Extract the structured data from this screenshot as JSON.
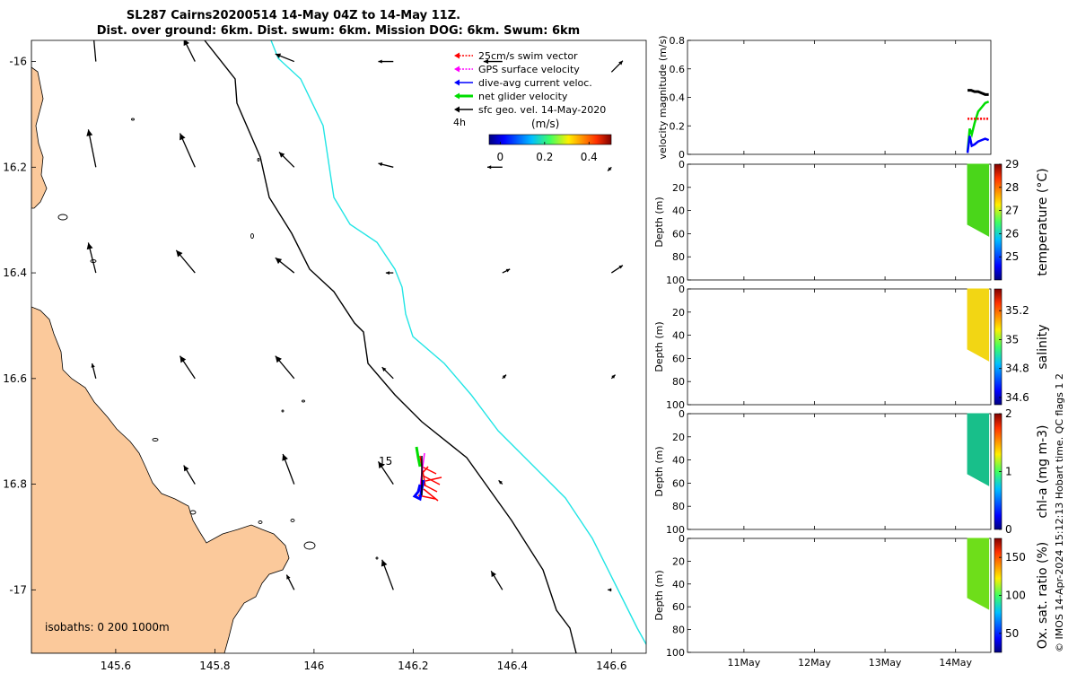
{
  "title": {
    "line1": "SL287 Cairns20200514 14-May 04Z to 14-May 11Z.",
    "line2": "Dist. over ground: 6km. Dist. swum: 6km. Mission DOG: 6km. Swum: 6km"
  },
  "map": {
    "x_ticks": [
      "145.6",
      "145.8",
      "146",
      "146.2",
      "146.4",
      "146.6"
    ],
    "y_ticks": [
      "-16",
      "16.2",
      "16.4",
      "16.6",
      "16.8",
      "-17"
    ],
    "xlim": [
      145.43,
      146.67
    ],
    "ylim": [
      -17.12,
      -15.96
    ],
    "land_color": "#fbc99b",
    "isobath_200_color": "#000000",
    "isobath_1000_color": "#22e5e5",
    "isobaths_label": "isobaths: 0   200  1000m",
    "time_label": "15",
    "legend": {
      "items": [
        {
          "label": "25cm/s swim vector",
          "color": "#ff0000"
        },
        {
          "label": "GPS surface velocity",
          "color": "#ff00ff"
        },
        {
          "label": "dive-avg current veloc.",
          "color": "#0000ff"
        },
        {
          "label": "net glider velocity",
          "color": "#00dd00"
        },
        {
          "label": "sfc geo. vel. 14-May-2020",
          "color": "#000000"
        }
      ],
      "scale_label": "4h"
    },
    "colorbar": {
      "label": "(m/s)",
      "ticks": [
        "0",
        "0.2",
        "0.4"
      ],
      "range": [
        -0.05,
        0.5
      ]
    },
    "geo_arrows": [
      {
        "lon": 145.56,
        "lat": -16.0,
        "u": -0.01,
        "v": 0.11
      },
      {
        "lon": 145.76,
        "lat": -16.0,
        "u": -0.03,
        "v": 0.06
      },
      {
        "lon": 145.96,
        "lat": -16.0,
        "u": -0.05,
        "v": 0.02
      },
      {
        "lon": 146.16,
        "lat": -16.0,
        "u": -0.04,
        "v": 0.0
      },
      {
        "lon": 146.38,
        "lat": -16.0,
        "u": -0.05,
        "v": 0.0
      },
      {
        "lon": 146.6,
        "lat": -16.02,
        "u": 0.03,
        "v": 0.03
      },
      {
        "lon": 145.56,
        "lat": -16.2,
        "u": -0.02,
        "v": 0.1
      },
      {
        "lon": 145.76,
        "lat": -16.2,
        "u": -0.04,
        "v": 0.09
      },
      {
        "lon": 145.96,
        "lat": -16.2,
        "u": -0.04,
        "v": 0.04
      },
      {
        "lon": 146.16,
        "lat": -16.2,
        "u": -0.04,
        "v": 0.01
      },
      {
        "lon": 146.38,
        "lat": -16.2,
        "u": -0.04,
        "v": 0.0
      },
      {
        "lon": 146.6,
        "lat": -16.2,
        "u": -0.01,
        "v": -0.01
      },
      {
        "lon": 145.56,
        "lat": -16.4,
        "u": -0.02,
        "v": 0.08
      },
      {
        "lon": 145.76,
        "lat": -16.4,
        "u": -0.05,
        "v": 0.06
      },
      {
        "lon": 145.96,
        "lat": -16.4,
        "u": -0.05,
        "v": 0.04
      },
      {
        "lon": 146.16,
        "lat": -16.4,
        "u": -0.02,
        "v": 0.0
      },
      {
        "lon": 146.38,
        "lat": -16.4,
        "u": 0.02,
        "v": 0.01
      },
      {
        "lon": 146.6,
        "lat": -16.4,
        "u": 0.03,
        "v": 0.02
      },
      {
        "lon": 145.56,
        "lat": -16.6,
        "u": -0.01,
        "v": 0.04
      },
      {
        "lon": 145.76,
        "lat": -16.6,
        "u": -0.04,
        "v": 0.06
      },
      {
        "lon": 145.96,
        "lat": -16.6,
        "u": -0.05,
        "v": 0.06
      },
      {
        "lon": 146.16,
        "lat": -16.6,
        "u": -0.03,
        "v": 0.03
      },
      {
        "lon": 146.38,
        "lat": -16.6,
        "u": 0.01,
        "v": 0.01
      },
      {
        "lon": 146.6,
        "lat": -16.6,
        "u": 0.01,
        "v": 0.01
      },
      {
        "lon": 145.76,
        "lat": -16.8,
        "u": -0.03,
        "v": 0.05
      },
      {
        "lon": 145.96,
        "lat": -16.8,
        "u": -0.03,
        "v": 0.08
      },
      {
        "lon": 146.16,
        "lat": -16.8,
        "u": -0.04,
        "v": 0.06
      },
      {
        "lon": 146.38,
        "lat": -16.8,
        "u": -0.01,
        "v": 0.01
      },
      {
        "lon": 146.6,
        "lat": -16.8,
        "u": 0.0,
        "v": 0.0
      },
      {
        "lon": 145.96,
        "lat": -17.0,
        "u": -0.02,
        "v": 0.04
      },
      {
        "lon": 146.16,
        "lat": -17.0,
        "u": -0.03,
        "v": 0.08
      },
      {
        "lon": 146.38,
        "lat": -17.0,
        "u": -0.03,
        "v": 0.05
      },
      {
        "lon": 146.6,
        "lat": -17.0,
        "u": -0.01,
        "v": 0.0
      }
    ]
  },
  "chart_data": [
    {
      "type": "line",
      "title": "",
      "ylabel": "velocity magnitude (m/s)",
      "ylim": [
        0,
        0.8
      ],
      "y_ticks": [
        "0",
        "0.2",
        "0.4",
        "0.6",
        "0.8"
      ],
      "x_ticks": [
        "11May",
        "12May",
        "13May",
        "14May"
      ],
      "series": [
        {
          "color": "#00dd00",
          "x": [
            14.17,
            14.2,
            14.23,
            14.27,
            14.32,
            14.37,
            14.42,
            14.47
          ],
          "values": [
            0.02,
            0.18,
            0.14,
            0.22,
            0.3,
            0.33,
            0.36,
            0.37
          ]
        },
        {
          "color": "#0000ff",
          "x": [
            14.17,
            14.2,
            14.23,
            14.27,
            14.32,
            14.37,
            14.42,
            14.47
          ],
          "values": [
            0.01,
            0.13,
            0.06,
            0.07,
            0.09,
            0.1,
            0.11,
            0.1
          ]
        },
        {
          "color": "#000000",
          "x": [
            14.17,
            14.22,
            14.27,
            14.32,
            14.37,
            14.42,
            14.47
          ],
          "values": [
            0.45,
            0.45,
            0.44,
            0.44,
            0.43,
            0.42,
            0.42
          ]
        },
        {
          "color": "#ff0000",
          "x": [
            14.17,
            14.22,
            14.27,
            14.32,
            14.37,
            14.42,
            14.47
          ],
          "values": [
            0.25,
            0.25,
            0.25,
            0.25,
            0.25,
            0.25,
            0.25
          ]
        }
      ]
    },
    {
      "type": "heatmap",
      "ylabel": "Depth (m)",
      "clabel": "temperature (°C)",
      "ylim": [
        100,
        0
      ],
      "y_ticks": [
        "0",
        "20",
        "40",
        "60",
        "80",
        "100"
      ],
      "clim": [
        24,
        29
      ],
      "c_ticks": [
        "25",
        "26",
        "27",
        "28",
        "29"
      ],
      "x_range": [
        14.17,
        14.47
      ],
      "depth_max_start": 52,
      "depth_max_end": 62,
      "value": 26.7,
      "color": "#4ad61a"
    },
    {
      "type": "heatmap",
      "ylabel": "Depth (m)",
      "clabel": "salinity",
      "ylim": [
        100,
        0
      ],
      "y_ticks": [
        "0",
        "20",
        "40",
        "60",
        "80",
        "100"
      ],
      "clim": [
        34.55,
        35.35
      ],
      "c_ticks": [
        "34.6",
        "34.8",
        "35",
        "35.2"
      ],
      "x_range": [
        14.17,
        14.47
      ],
      "depth_max_start": 52,
      "depth_max_end": 62,
      "value": 35.07,
      "color": "#f2d614"
    },
    {
      "type": "heatmap",
      "ylabel": "Depth (m)",
      "clabel": "chl-a (mg m-3)",
      "ylim": [
        100,
        0
      ],
      "y_ticks": [
        "0",
        "20",
        "40",
        "60",
        "80",
        "100"
      ],
      "clim": [
        0,
        2
      ],
      "c_ticks": [
        "0",
        "1",
        "2"
      ],
      "x_range": [
        14.17,
        14.47
      ],
      "depth_max_start": 52,
      "depth_max_end": 62,
      "value": 0.75,
      "color": "#18bf8a"
    },
    {
      "type": "heatmap",
      "ylabel": "Depth (m)",
      "clabel": "Ox. sat. ratio (%)",
      "ylim": [
        100,
        0
      ],
      "y_ticks": [
        "0",
        "20",
        "40",
        "60",
        "80",
        "100"
      ],
      "clim": [
        25,
        175
      ],
      "c_ticks": [
        "50",
        "100",
        "150"
      ],
      "x_range": [
        14.17,
        14.47
      ],
      "depth_max_start": 52,
      "depth_max_end": 62,
      "value": 112,
      "color": "#6ede1a"
    }
  ],
  "timeline_ticks": [
    11,
    12,
    13,
    14
  ],
  "timeline_range": [
    10.2,
    14.5
  ],
  "copyright": "© IMOS 14-Apr-2024 15:12:13 Hobart time. QC flags 1  2"
}
